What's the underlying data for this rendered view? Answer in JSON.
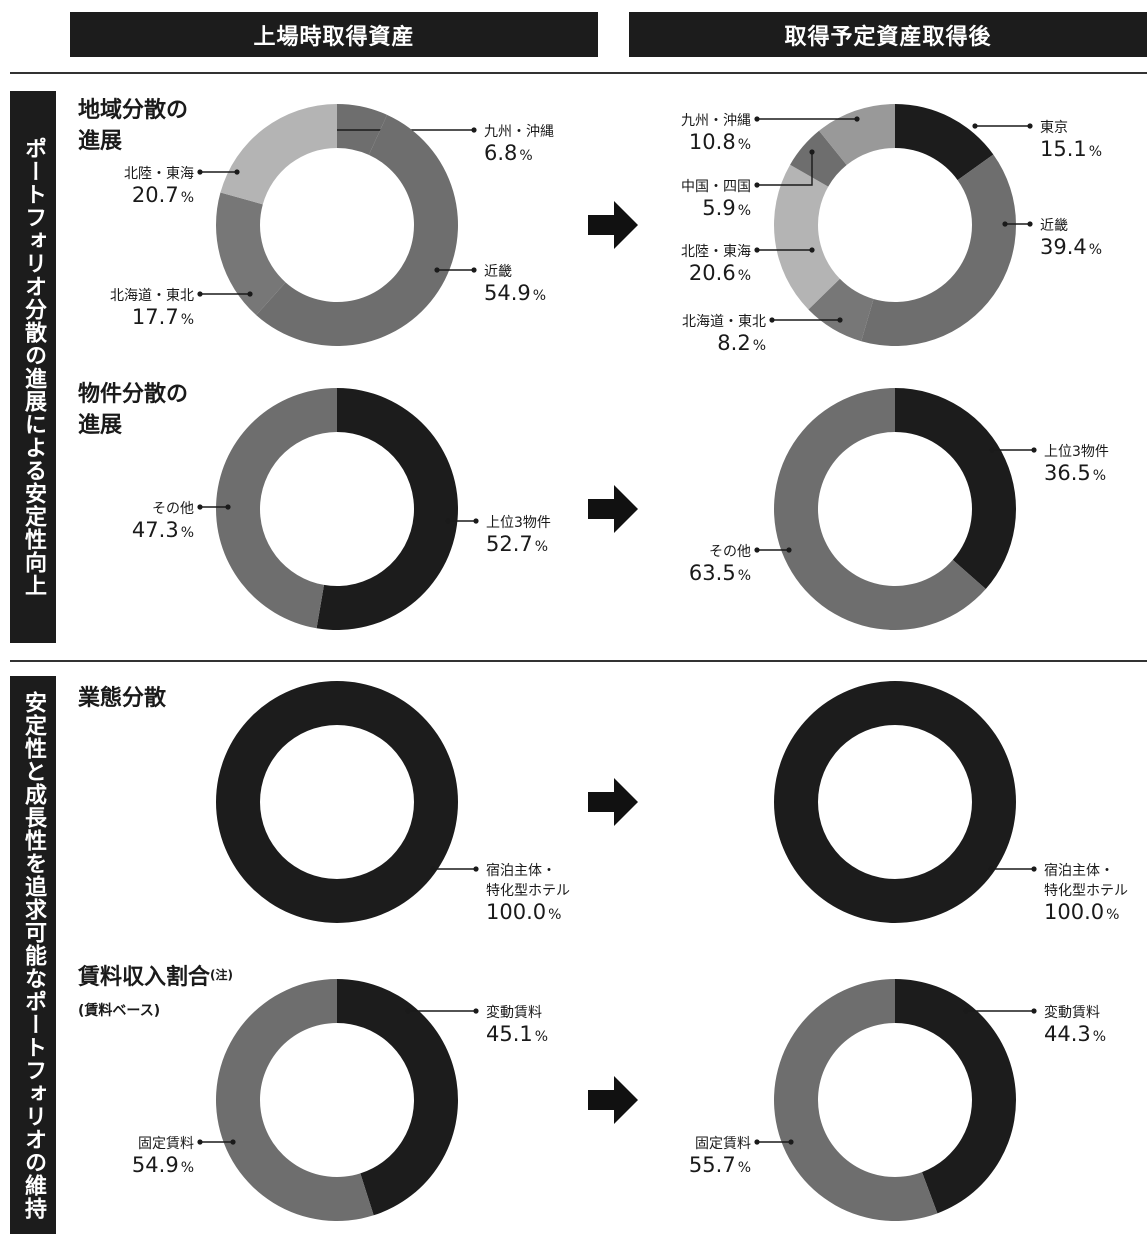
{
  "headers": {
    "left": "上場時取得資産",
    "right": "取得予定資産取得後"
  },
  "bands": {
    "top": "ポートフォリオ分散の進展による安定性向上",
    "bottom": "安定性と成長性を追求可能なポートフォリオの維持"
  },
  "sections": {
    "region": "地域分散の\n進展",
    "property": "物件分散の\n進展",
    "business": "業態分散",
    "rent": "賃料収入割合",
    "rent_note": "(注)",
    "rent_sub": "(賃料ベース)"
  },
  "colors": {
    "black": "#1c1c1c",
    "dark_gray": "#6e6e6e",
    "light_gray": "#b4b4b4",
    "mid_gray": "#999999",
    "header_bg": "#1c1c1c"
  },
  "chart_data": [
    {
      "id": "region-before",
      "type": "pie",
      "segments": [
        {
          "name": "九州・沖縄",
          "value": 6.8,
          "color": "#6e6e6e"
        },
        {
          "name": "近畿",
          "value": 54.9,
          "color": "#6e6e6e"
        },
        {
          "name": "北海道・東北",
          "value": 17.7,
          "color": "#777777"
        },
        {
          "name": "北陸・東海",
          "value": 20.7,
          "color": "#b4b4b4"
        }
      ]
    },
    {
      "id": "region-after",
      "type": "pie",
      "segments": [
        {
          "name": "東京",
          "value": 15.1,
          "color": "#1c1c1c"
        },
        {
          "name": "近畿",
          "value": 39.4,
          "color": "#6e6e6e"
        },
        {
          "name": "北海道・東北",
          "value": 8.2,
          "color": "#777777"
        },
        {
          "name": "北陸・東海",
          "value": 20.6,
          "color": "#b4b4b4"
        },
        {
          "name": "中国・四国",
          "value": 5.9,
          "color": "#6e6e6e"
        },
        {
          "name": "九州・沖縄",
          "value": 10.8,
          "color": "#999999"
        }
      ]
    },
    {
      "id": "property-before",
      "type": "pie",
      "segments": [
        {
          "name": "上位3物件",
          "value": 52.7,
          "color": "#1c1c1c"
        },
        {
          "name": "その他",
          "value": 47.3,
          "color": "#6e6e6e"
        }
      ]
    },
    {
      "id": "property-after",
      "type": "pie",
      "segments": [
        {
          "name": "上位3物件",
          "value": 36.5,
          "color": "#1c1c1c"
        },
        {
          "name": "その他",
          "value": 63.5,
          "color": "#6e6e6e"
        }
      ]
    },
    {
      "id": "business-before",
      "type": "pie",
      "segments": [
        {
          "name": "宿泊主体・\n特化型ホテル",
          "value": 100.0,
          "color": "#1c1c1c"
        }
      ]
    },
    {
      "id": "business-after",
      "type": "pie",
      "segments": [
        {
          "name": "宿泊主体・\n特化型ホテル",
          "value": 100.0,
          "color": "#1c1c1c"
        }
      ]
    },
    {
      "id": "rent-before",
      "type": "pie",
      "segments": [
        {
          "name": "変動賃料",
          "value": 45.1,
          "color": "#1c1c1c"
        },
        {
          "name": "固定賃料",
          "value": 54.9,
          "color": "#6e6e6e"
        }
      ]
    },
    {
      "id": "rent-after",
      "type": "pie",
      "segments": [
        {
          "name": "変動賃料",
          "value": 44.3,
          "color": "#1c1c1c"
        },
        {
          "name": "固定賃料",
          "value": 55.7,
          "color": "#6e6e6e"
        }
      ]
    }
  ]
}
